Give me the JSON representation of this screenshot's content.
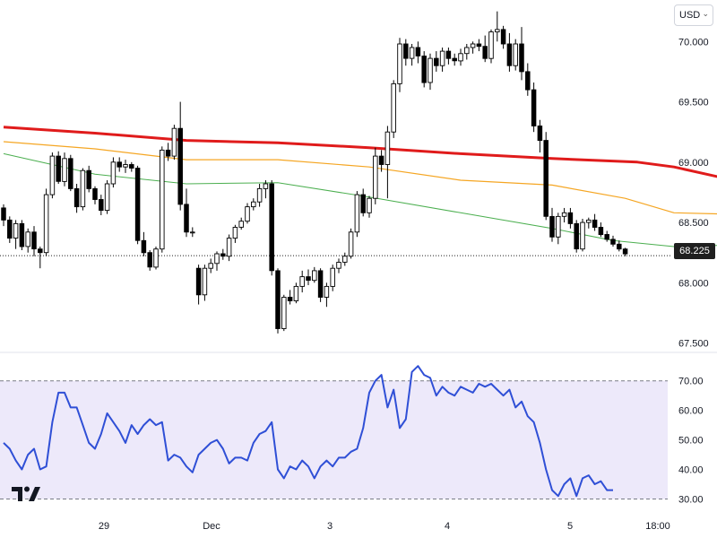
{
  "currency": {
    "label": "USD"
  },
  "last_price": "68.225",
  "colors": {
    "up": "#ffffff",
    "down": "#000000",
    "ma_slow": "#e01b1b",
    "ma_mid": "#f5a623",
    "ma_fast": "#4caf50",
    "rsi": "#2f4fd6",
    "rsi_band": "#ede9fa"
  },
  "chart_data": [
    {
      "type": "candlestick",
      "y_ticks": [
        "70.000",
        "69.500",
        "69.000",
        "68.500",
        "68.000",
        "67.500"
      ],
      "ylim": [
        67.43,
        70.27
      ],
      "x_ticks": [
        "29",
        "Dec",
        "3",
        "4",
        "5",
        "18:00"
      ],
      "last_price": 68.225,
      "grid": false,
      "series": [
        {
          "type": "candlestick",
          "ohlc": [
            [
              68.62,
              68.65,
              68.47,
              68.52
            ],
            [
              68.52,
              68.55,
              68.33,
              68.37
            ],
            [
              68.37,
              68.52,
              68.28,
              68.49
            ],
            [
              68.49,
              68.52,
              68.27,
              68.3
            ],
            [
              68.3,
              68.45,
              68.25,
              68.42
            ],
            [
              68.42,
              68.47,
              68.22,
              68.28
            ],
            [
              68.28,
              68.3,
              68.12,
              68.25
            ],
            [
              68.25,
              68.78,
              68.22,
              68.73
            ],
            [
              68.73,
              69.08,
              68.7,
              69.05
            ],
            [
              69.05,
              69.09,
              68.82,
              68.84
            ],
            [
              68.84,
              69.08,
              68.8,
              69.03
            ],
            [
              69.03,
              69.06,
              68.76,
              68.78
            ],
            [
              68.78,
              68.82,
              68.58,
              68.63
            ],
            [
              68.63,
              68.95,
              68.6,
              68.93
            ],
            [
              68.93,
              68.97,
              68.75,
              68.78
            ],
            [
              68.78,
              68.8,
              68.65,
              68.69
            ],
            [
              68.69,
              68.73,
              68.56,
              68.6
            ],
            [
              68.6,
              68.85,
              68.57,
              68.82
            ],
            [
              68.82,
              69.04,
              68.79,
              69.0
            ],
            [
              69.0,
              69.04,
              68.92,
              68.96
            ],
            [
              68.96,
              69.02,
              68.91,
              68.98
            ],
            [
              68.98,
              69.0,
              68.92,
              68.95
            ],
            [
              68.95,
              68.97,
              68.32,
              68.35
            ],
            [
              68.35,
              68.42,
              68.22,
              68.25
            ],
            [
              68.25,
              68.27,
              68.1,
              68.13
            ],
            [
              68.13,
              68.3,
              68.11,
              68.28
            ],
            [
              68.28,
              69.13,
              68.25,
              69.1
            ],
            [
              69.1,
              69.16,
              69.01,
              69.05
            ],
            [
              69.05,
              69.31,
              69.02,
              69.28
            ],
            [
              69.28,
              69.5,
              68.6,
              68.65
            ],
            [
              68.65,
              68.78,
              68.38,
              68.42
            ],
            [
              68.42,
              68.46,
              68.38,
              68.42
            ],
            [
              68.12,
              68.15,
              67.82,
              67.9
            ],
            [
              67.9,
              68.15,
              67.85,
              68.12
            ],
            [
              68.12,
              68.2,
              68.08,
              68.16
            ],
            [
              68.16,
              68.26,
              68.1,
              68.24
            ],
            [
              68.24,
              68.28,
              68.19,
              68.22
            ],
            [
              68.22,
              68.4,
              68.18,
              68.37
            ],
            [
              68.37,
              68.48,
              68.33,
              68.46
            ],
            [
              68.46,
              68.54,
              68.44,
              68.51
            ],
            [
              68.51,
              68.66,
              68.49,
              68.63
            ],
            [
              68.63,
              68.7,
              68.6,
              68.67
            ],
            [
              68.67,
              68.82,
              68.63,
              68.78
            ],
            [
              68.78,
              68.85,
              68.7,
              68.82
            ],
            [
              68.82,
              68.85,
              68.06,
              68.1
            ],
            [
              68.1,
              68.12,
              67.58,
              67.62
            ],
            [
              67.62,
              67.9,
              67.6,
              67.88
            ],
            [
              67.88,
              67.94,
              67.82,
              67.85
            ],
            [
              67.85,
              68.0,
              67.83,
              67.97
            ],
            [
              67.97,
              68.1,
              67.92,
              68.05
            ],
            [
              68.05,
              68.11,
              67.98,
              68.02
            ],
            [
              68.02,
              68.13,
              68.0,
              68.1
            ],
            [
              68.1,
              68.12,
              67.84,
              67.88
            ],
            [
              67.88,
              68.0,
              67.8,
              67.97
            ],
            [
              67.97,
              68.15,
              67.93,
              68.12
            ],
            [
              68.12,
              68.2,
              68.08,
              68.17
            ],
            [
              68.17,
              68.25,
              68.14,
              68.22
            ],
            [
              68.22,
              68.45,
              68.2,
              68.42
            ],
            [
              68.42,
              68.76,
              68.38,
              68.73
            ],
            [
              68.73,
              68.78,
              68.55,
              68.58
            ],
            [
              68.58,
              68.72,
              68.54,
              68.7
            ],
            [
              68.7,
              69.12,
              68.65,
              69.05
            ],
            [
              69.05,
              69.1,
              68.92,
              68.98
            ],
            [
              68.98,
              69.3,
              68.7,
              69.25
            ],
            [
              69.25,
              69.68,
              69.2,
              69.65
            ],
            [
              69.65,
              70.03,
              69.58,
              69.98
            ],
            [
              69.98,
              70.02,
              69.8,
              69.86
            ],
            [
              69.86,
              69.98,
              69.8,
              69.95
            ],
            [
              69.95,
              70.0,
              69.82,
              69.88
            ],
            [
              69.88,
              69.92,
              69.62,
              69.66
            ],
            [
              69.66,
              69.9,
              69.6,
              69.86
            ],
            [
              69.86,
              69.92,
              69.75,
              69.8
            ],
            [
              69.8,
              69.95,
              69.75,
              69.92
            ],
            [
              69.92,
              69.95,
              69.81,
              69.86
            ],
            [
              69.86,
              69.9,
              69.8,
              69.84
            ],
            [
              69.84,
              69.94,
              69.8,
              69.9
            ],
            [
              69.9,
              69.98,
              69.85,
              69.95
            ],
            [
              69.95,
              70.0,
              69.9,
              69.98
            ],
            [
              69.98,
              70.02,
              69.92,
              69.96
            ],
            [
              69.96,
              70.05,
              69.83,
              69.86
            ],
            [
              69.86,
              70.1,
              69.82,
              70.08
            ],
            [
              70.08,
              70.25,
              70.0,
              70.1
            ],
            [
              70.1,
              70.13,
              69.94,
              69.98
            ],
            [
              69.98,
              70.07,
              69.75,
              69.8
            ],
            [
              69.8,
              70.02,
              69.76,
              69.98
            ],
            [
              69.98,
              70.12,
              69.68,
              69.75
            ],
            [
              69.75,
              69.82,
              69.55,
              69.6
            ],
            [
              69.6,
              69.66,
              69.25,
              69.3
            ],
            [
              69.3,
              69.35,
              69.08,
              69.18
            ],
            [
              69.18,
              69.25,
              68.52,
              68.55
            ],
            [
              68.55,
              68.62,
              68.34,
              68.38
            ],
            [
              68.38,
              68.58,
              68.32,
              68.55
            ],
            [
              68.55,
              68.62,
              68.5,
              68.58
            ],
            [
              68.58,
              68.62,
              68.45,
              68.49
            ],
            [
              68.49,
              68.52,
              68.25,
              68.28
            ],
            [
              68.28,
              68.53,
              68.26,
              68.5
            ],
            [
              68.5,
              68.54,
              68.45,
              68.52
            ],
            [
              68.52,
              68.57,
              68.43,
              68.46
            ],
            [
              68.46,
              68.5,
              68.38,
              68.4
            ],
            [
              68.4,
              68.43,
              68.34,
              68.36
            ],
            [
              68.36,
              68.39,
              68.3,
              68.32
            ],
            [
              68.32,
              68.35,
              68.26,
              68.28
            ],
            [
              68.28,
              68.29,
              68.22,
              68.24
            ]
          ]
        },
        {
          "name": "",
          "type": "line",
          "color": "#e01b1b",
          "points": [
            [
              0,
              69.29
            ],
            [
              15,
              69.24
            ],
            [
              30,
              69.18
            ],
            [
              45,
              69.16
            ],
            [
              60,
              69.12
            ],
            [
              75,
              69.07
            ],
            [
              90,
              69.03
            ],
            [
              104,
              69.0
            ],
            [
              110,
              68.96
            ],
            [
              118,
              68.87
            ],
            [
              124,
              68.84
            ],
            [
              126,
              68.85
            ],
            [
              132,
              68.86
            ],
            [
              145,
              68.9
            ],
            [
              160,
              68.97
            ],
            [
              170,
              69.04
            ],
            [
              180,
              69.06
            ],
            [
              190,
              69.03
            ],
            [
              195,
              69.01
            ],
            [
              200,
              68.98
            ]
          ]
        },
        {
          "name": "",
          "type": "line",
          "color": "#f5a623",
          "points": [
            [
              0,
              69.17
            ],
            [
              15,
              69.11
            ],
            [
              30,
              69.02
            ],
            [
              45,
              69.02
            ],
            [
              60,
              68.96
            ],
            [
              75,
              68.85
            ],
            [
              90,
              68.81
            ],
            [
              102,
              68.7
            ],
            [
              110,
              68.58
            ],
            [
              118,
              68.57
            ],
            [
              124,
              68.59
            ],
            [
              130,
              68.65
            ],
            [
              135,
              68.78
            ],
            [
              145,
              68.87
            ],
            [
              160,
              68.96
            ],
            [
              170,
              69.0
            ],
            [
              180,
              69.05
            ],
            [
              190,
              69.03
            ],
            [
              200,
              68.91
            ]
          ]
        },
        {
          "name": "",
          "type": "line",
          "color": "#4caf50",
          "points": [
            [
              0,
              69.07
            ],
            [
              15,
              68.9
            ],
            [
              30,
              68.82
            ],
            [
              45,
              68.83
            ],
            [
              60,
              68.71
            ],
            [
              75,
              68.58
            ],
            [
              90,
              68.45
            ],
            [
              100,
              68.35
            ],
            [
              110,
              68.3
            ],
            [
              118,
              68.31
            ],
            [
              124,
              68.4
            ],
            [
              130,
              68.47
            ],
            [
              135,
              68.64
            ],
            [
              145,
              68.95
            ],
            [
              155,
              69.16
            ],
            [
              165,
              69.3
            ],
            [
              170,
              69.24
            ],
            [
              180,
              69.13
            ],
            [
              190,
              69.0
            ],
            [
              200,
              68.9
            ]
          ]
        }
      ]
    },
    {
      "type": "line",
      "y_ticks": [
        "70.00",
        "60.00",
        "50.00",
        "40.00",
        "30.00"
      ],
      "ylim": [
        26.5,
        77.5
      ],
      "band": [
        30,
        70
      ],
      "series": [
        {
          "name": "",
          "type": "line",
          "color": "#2f4fd6",
          "values": [
            49,
            47,
            43,
            40,
            45,
            47,
            40,
            41,
            56,
            66,
            66,
            61,
            61,
            55,
            49,
            47,
            52,
            59,
            56,
            53,
            49,
            55,
            52,
            55,
            57,
            55,
            56,
            43,
            45,
            44,
            41,
            39,
            45,
            47,
            49,
            50,
            47,
            42,
            44,
            44,
            43,
            49,
            52,
            53,
            56,
            40,
            37,
            41,
            40,
            43,
            41,
            37,
            41,
            43,
            41,
            44,
            44,
            46,
            47,
            54,
            66,
            70,
            72,
            61,
            67,
            54,
            57,
            73,
            75,
            72,
            71,
            65,
            68,
            66,
            65,
            68,
            67,
            66,
            69,
            68,
            69,
            67,
            65,
            67,
            61,
            63,
            58,
            56,
            49,
            40,
            33,
            31,
            35,
            37,
            31,
            37,
            38,
            35,
            36,
            33,
            33
          ]
        }
      ]
    }
  ]
}
